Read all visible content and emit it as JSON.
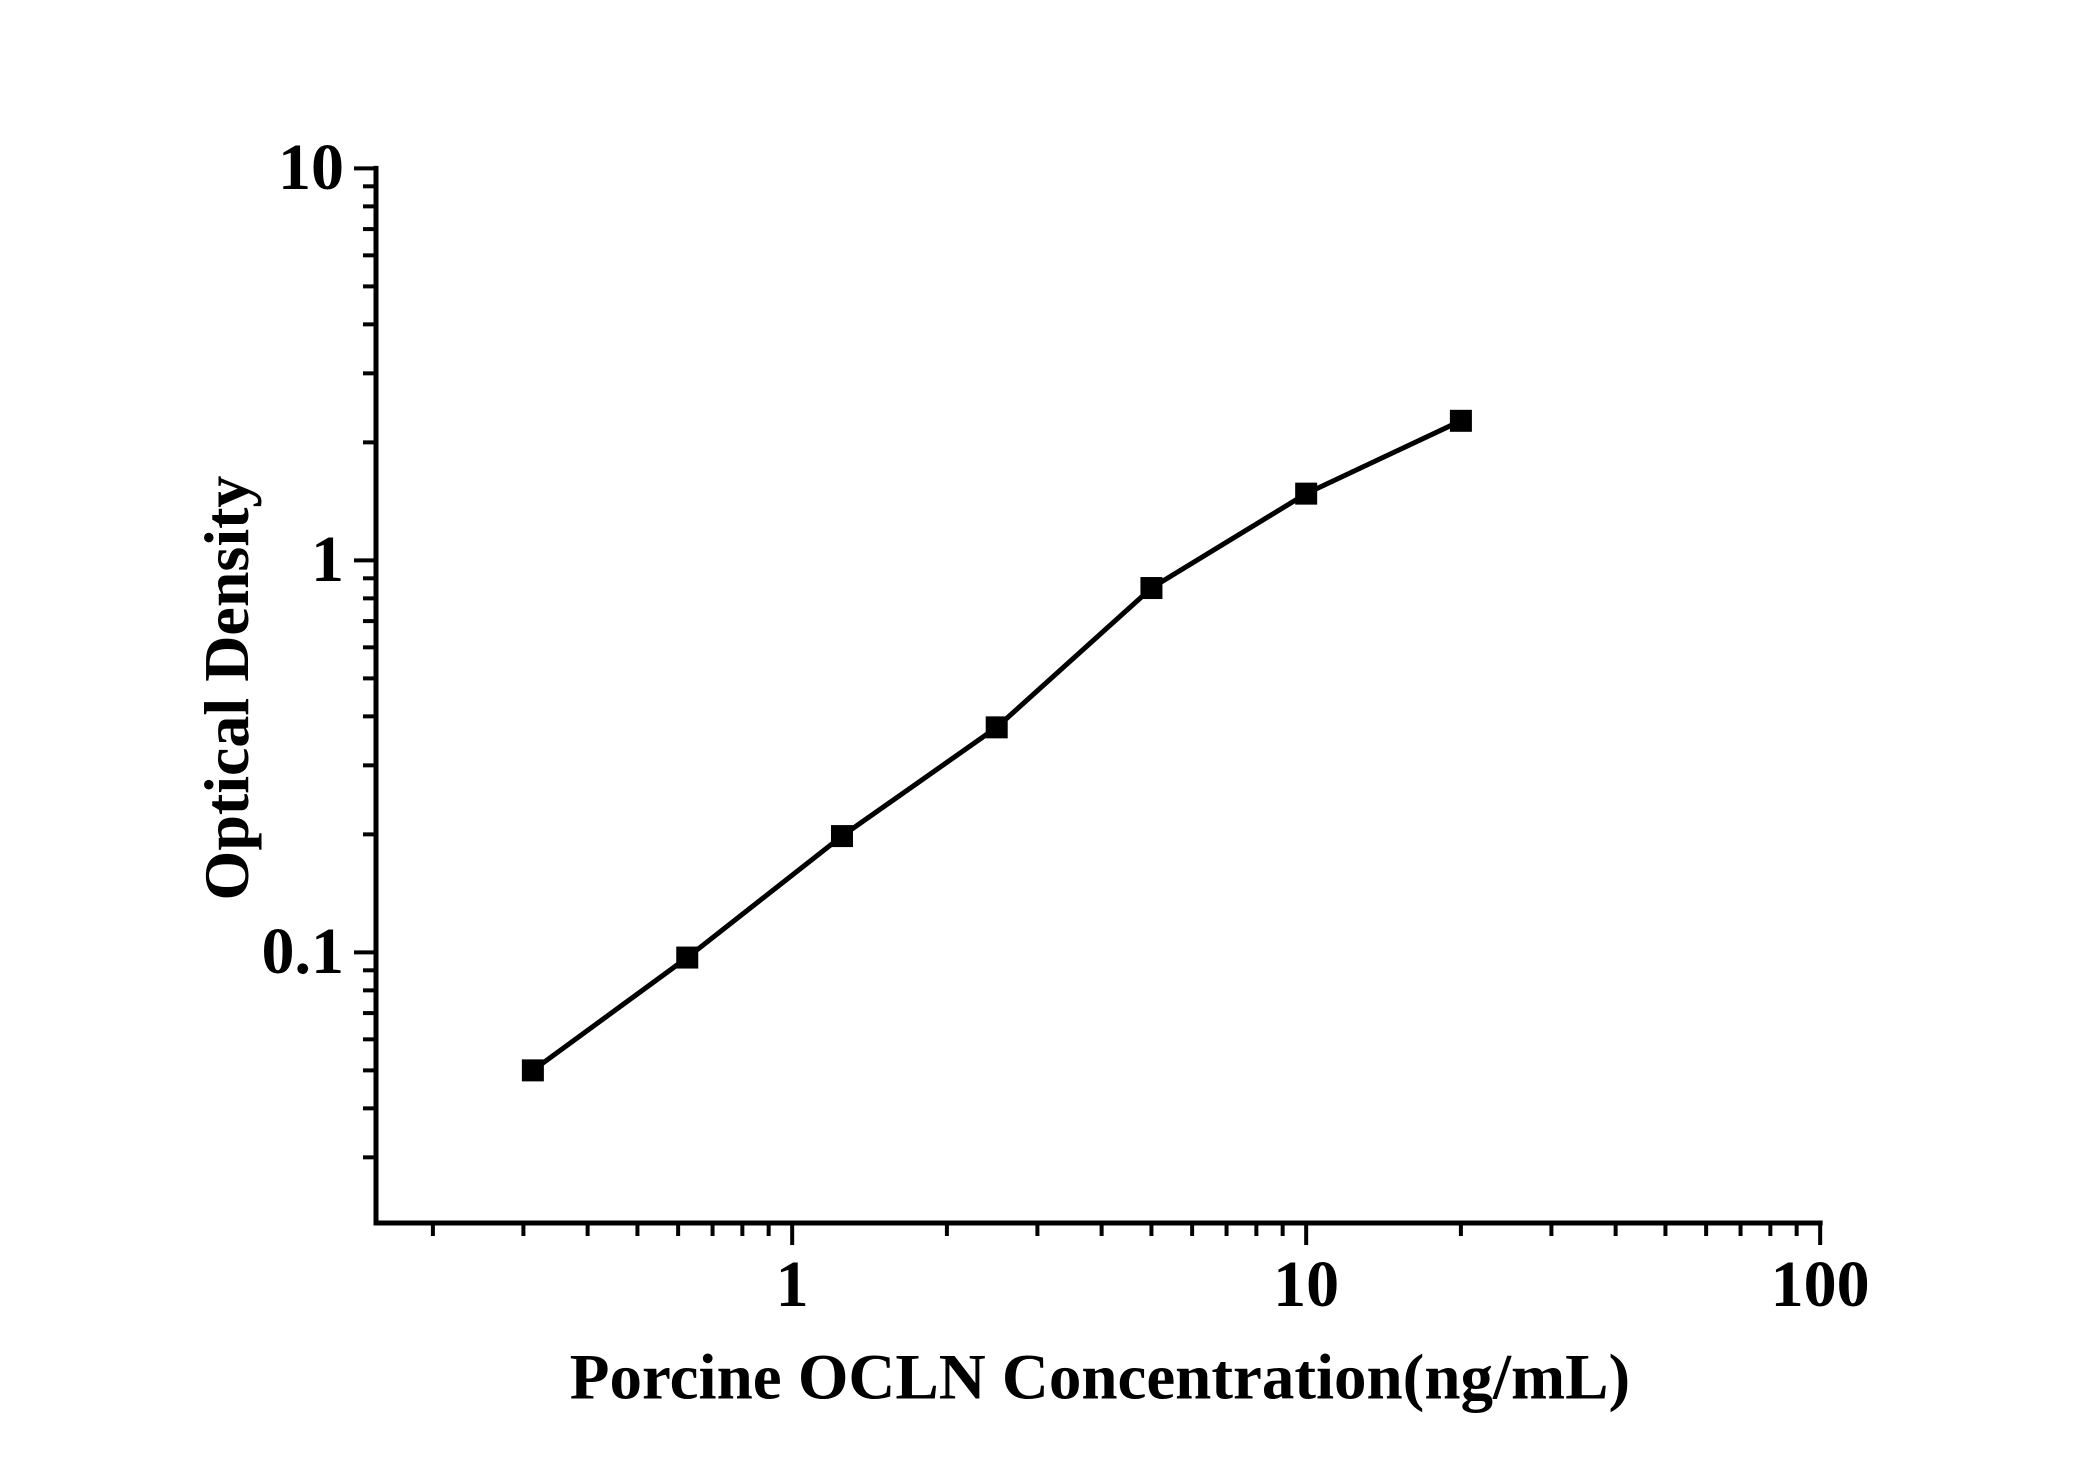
{
  "figure": {
    "background_color": "#ffffff",
    "ink_color": "#000000"
  },
  "chart_data": {
    "type": "line",
    "title": "",
    "xlabel": "Porcine OCLN Concentration(ng/mL)",
    "ylabel": "Optical Density",
    "x_scale": "log",
    "y_scale": "log",
    "xlim": [
      0.155,
      100
    ],
    "ylim": [
      0.0204,
      10
    ],
    "x_major_ticks": [
      1,
      10,
      100
    ],
    "x_major_tick_labels": [
      "1",
      "10",
      "100"
    ],
    "y_major_ticks": [
      0.1,
      1,
      10
    ],
    "y_major_tick_labels": [
      "0.1",
      "1",
      "10"
    ],
    "grid": false,
    "legend": "none",
    "marker": "filled-square",
    "series": [
      {
        "x": [
          0.313,
          0.625,
          1.25,
          2.5,
          5,
          10,
          20
        ],
        "y": [
          0.05,
          0.097,
          0.198,
          0.375,
          0.85,
          1.48,
          2.27
        ]
      }
    ]
  }
}
